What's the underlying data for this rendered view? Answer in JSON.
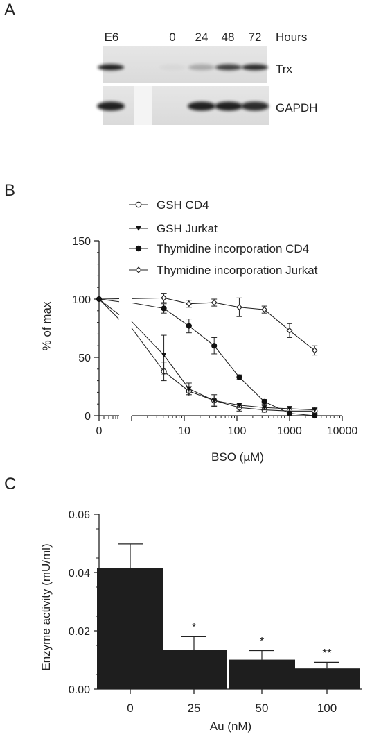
{
  "panels": {
    "a": "A",
    "b": "B",
    "c": "C"
  },
  "blot": {
    "lanes": [
      "E6",
      "0",
      "24",
      "48",
      "72"
    ],
    "time_unit": "Hours",
    "bands": [
      "Trx",
      "GAPDH"
    ],
    "trx_intensity": [
      0.9,
      0.03,
      0.25,
      0.75,
      0.85
    ],
    "gapdh_intensity": [
      0.9,
      0.0,
      0.9,
      0.9,
      0.85
    ]
  },
  "chart_data": [
    {
      "panel": "B",
      "type": "line",
      "xlabel": "BSO (µM)",
      "ylabel": "% of max",
      "xscale": "log",
      "x_ticks": [
        "0",
        "10",
        "100",
        "1000",
        "10000"
      ],
      "y_ticks": [
        "0",
        "50",
        "100",
        "150"
      ],
      "ylim": [
        0,
        150
      ],
      "xlim": [
        1,
        10000
      ],
      "legend_position": "top-right",
      "series": [
        {
          "name": "GSH CD4",
          "marker": "open-circle",
          "zero_value": 100,
          "x": [
            4.1,
            12.3,
            37,
            111,
            333,
            1000,
            3000
          ],
          "y": [
            38,
            21,
            13,
            7,
            5,
            4,
            4
          ],
          "err": [
            8,
            4,
            4,
            3,
            2,
            2,
            2
          ]
        },
        {
          "name": "GSH Jurkat",
          "marker": "filled-triangle-down",
          "zero_value": 100,
          "x": [
            4.1,
            12.3,
            37,
            111,
            333,
            1000,
            3000
          ],
          "y": [
            52,
            23,
            13,
            9,
            7,
            6,
            5
          ],
          "err": [
            17,
            5,
            5,
            2,
            2,
            2,
            2
          ]
        },
        {
          "name": "Thymidine incorporation CD4",
          "marker": "filled-circle",
          "zero_value": 100,
          "x": [
            4.1,
            12.3,
            37,
            111,
            333,
            1000,
            3000
          ],
          "y": [
            92,
            77,
            60,
            33,
            12,
            2,
            0
          ],
          "err": [
            4,
            6,
            7,
            2,
            2,
            1,
            1
          ]
        },
        {
          "name": "Thymidine incorporation Jurkat",
          "marker": "open-diamond",
          "zero_value": 100,
          "x": [
            4.1,
            12.3,
            37,
            111,
            333,
            1000,
            3000
          ],
          "y": [
            101,
            96,
            97,
            93,
            91,
            73,
            56
          ],
          "err": [
            4,
            3,
            3,
            8,
            3,
            6,
            4
          ]
        }
      ]
    },
    {
      "panel": "C",
      "type": "bar",
      "xlabel": "Au (nM)",
      "ylabel": "Enzyme activity (mU/ml)",
      "categories": [
        "0",
        "25",
        "50",
        "100"
      ],
      "values": [
        0.0415,
        0.0135,
        0.0101,
        0.0071
      ],
      "errors": [
        0.0083,
        0.0045,
        0.0031,
        0.0021
      ],
      "annotations": [
        "",
        "*",
        "*",
        "**"
      ],
      "y_ticks": [
        "0.00",
        "0.02",
        "0.04",
        "0.06"
      ],
      "ylim": [
        0,
        0.06
      ],
      "bar_color": "#1e1e1e"
    }
  ]
}
